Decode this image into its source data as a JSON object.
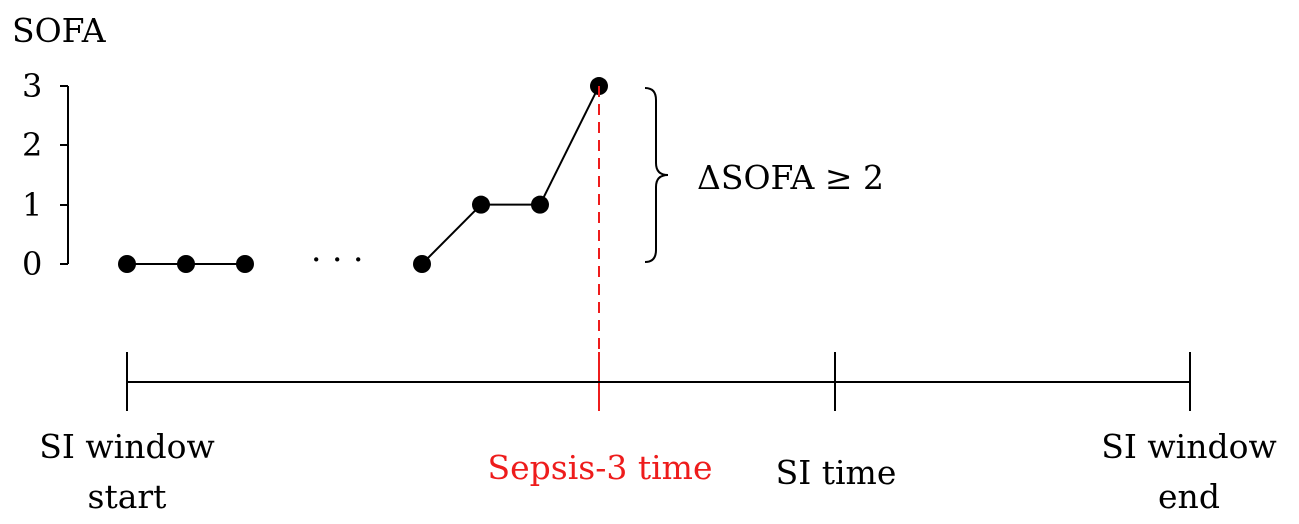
{
  "y_axis": {
    "title": "SOFA",
    "ticks": [
      {
        "label": "3",
        "value": 3
      },
      {
        "label": "2",
        "value": 2
      },
      {
        "label": "1",
        "value": 1
      },
      {
        "label": "0",
        "value": 0
      }
    ]
  },
  "sofa_points": [
    0,
    0,
    0,
    0,
    1,
    1,
    3
  ],
  "ellipsis": "· · ·",
  "delta_label": "ΔSOFA ≥ 2",
  "timeline": {
    "si_window_start": {
      "line1": "SI window",
      "line2": "start"
    },
    "sepsis3_time": "Sepsis-3 time",
    "si_time": "SI time",
    "si_window_end": {
      "line1": "SI window",
      "line2": "end"
    }
  },
  "colors": {
    "line": "#000000",
    "sepsis": "#ee1c1c"
  }
}
